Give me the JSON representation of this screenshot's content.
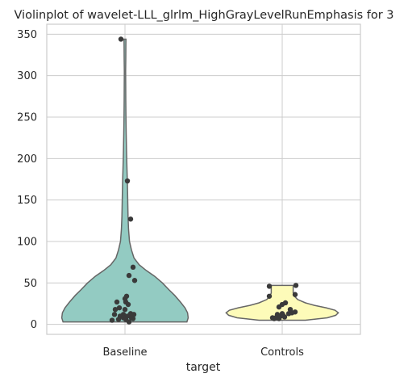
{
  "chart_data": {
    "type": "violin",
    "title": "Violinplot of wavelet-LLL_glrlm_HighGrayLevelRunEmphasis for 3",
    "xlabel": "target",
    "ylabel": "",
    "categories": [
      "Baseline",
      "Controls"
    ],
    "ylim": [
      -12,
      362
    ],
    "yticks": [
      0,
      50,
      100,
      150,
      200,
      250,
      300,
      350
    ],
    "grid": true,
    "colors": {
      "Baseline": "#93cbc2",
      "Controls": "#fdfbb9",
      "edge": "#666666",
      "points": "#3a3a3a"
    },
    "series": [
      {
        "category": "Baseline",
        "range": [
          3,
          344
        ],
        "density": [
          [
            3,
            0.96
          ],
          [
            8,
            0.98
          ],
          [
            14,
            0.97
          ],
          [
            20,
            0.93
          ],
          [
            27,
            0.86
          ],
          [
            35,
            0.77
          ],
          [
            42,
            0.68
          ],
          [
            50,
            0.58
          ],
          [
            58,
            0.46
          ],
          [
            65,
            0.33
          ],
          [
            72,
            0.22
          ],
          [
            80,
            0.14
          ],
          [
            90,
            0.1
          ],
          [
            100,
            0.07
          ],
          [
            115,
            0.055
          ],
          [
            130,
            0.048
          ],
          [
            150,
            0.042
          ],
          [
            170,
            0.037
          ],
          [
            190,
            0.03
          ],
          [
            210,
            0.024
          ],
          [
            230,
            0.019
          ],
          [
            250,
            0.015
          ],
          [
            270,
            0.012
          ],
          [
            290,
            0.011
          ],
          [
            305,
            0.01
          ],
          [
            320,
            0.012
          ],
          [
            335,
            0.014
          ],
          [
            344,
            0.015
          ]
        ],
        "points": [
          [
            -0.05,
            344
          ],
          [
            0.03,
            173
          ],
          [
            0.07,
            127
          ],
          [
            0.1,
            69
          ],
          [
            0.12,
            53
          ],
          [
            0.05,
            59
          ],
          [
            0.02,
            34
          ],
          [
            0.0,
            31
          ],
          [
            -0.1,
            27
          ],
          [
            0.01,
            27
          ],
          [
            0.04,
            24
          ],
          [
            -0.07,
            20
          ],
          [
            -0.12,
            18
          ],
          [
            0.0,
            18
          ],
          [
            0.07,
            13
          ],
          [
            -0.02,
            12
          ],
          [
            0.11,
            12
          ],
          [
            -0.13,
            12
          ],
          [
            0.03,
            10
          ],
          [
            -0.06,
            10
          ],
          [
            0.08,
            8
          ],
          [
            -0.02,
            8
          ],
          [
            0.1,
            7
          ],
          [
            -0.08,
            6
          ],
          [
            0.01,
            6
          ],
          [
            -0.16,
            5
          ],
          [
            0.05,
            3
          ]
        ]
      },
      {
        "category": "Controls",
        "range": [
          5,
          47
        ],
        "density": [
          [
            5,
            0.36
          ],
          [
            8,
            0.7
          ],
          [
            11,
            0.83
          ],
          [
            14,
            0.87
          ],
          [
            17,
            0.82
          ],
          [
            20,
            0.68
          ],
          [
            23,
            0.5
          ],
          [
            26,
            0.36
          ],
          [
            30,
            0.24
          ],
          [
            34,
            0.19
          ],
          [
            38,
            0.17
          ],
          [
            42,
            0.17
          ],
          [
            47,
            0.17
          ]
        ],
        "points": [
          [
            0.17,
            47
          ],
          [
            -0.16,
            46
          ],
          [
            -0.16,
            34
          ],
          [
            0.16,
            36
          ],
          [
            0.0,
            24
          ],
          [
            -0.04,
            21
          ],
          [
            0.04,
            26
          ],
          [
            0.1,
            18
          ],
          [
            0.12,
            14
          ],
          [
            0.16,
            15
          ],
          [
            0.08,
            13
          ],
          [
            0.0,
            13
          ],
          [
            -0.06,
            12
          ],
          [
            -0.02,
            10
          ],
          [
            -0.08,
            8
          ],
          [
            0.03,
            9
          ],
          [
            -0.04,
            7
          ],
          [
            -0.12,
            8
          ],
          [
            -0.1,
            7
          ],
          [
            0.01,
            11
          ]
        ]
      }
    ]
  }
}
